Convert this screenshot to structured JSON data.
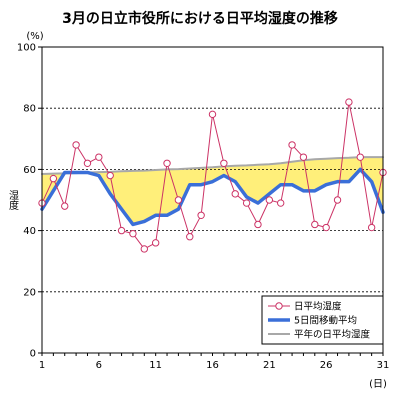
{
  "chart_data": {
    "type": "line",
    "title": "3月の日立市役所における日平均湿度の推移",
    "ylabel": "湿度",
    "y_unit": "(%)",
    "x_unit": "(日)",
    "xlim": [
      1,
      31
    ],
    "ylim": [
      0,
      100
    ],
    "x_ticks": [
      1,
      6,
      11,
      16,
      21,
      26,
      31
    ],
    "y_ticks": [
      0,
      20,
      40,
      60,
      80,
      100
    ],
    "grid": "horizontal dashed",
    "legend_position": "bottom-right",
    "x": [
      1,
      2,
      3,
      4,
      5,
      6,
      7,
      8,
      9,
      10,
      11,
      12,
      13,
      14,
      15,
      16,
      17,
      18,
      19,
      20,
      21,
      22,
      23,
      24,
      25,
      26,
      27,
      28,
      29,
      30,
      31
    ],
    "series": [
      {
        "name": "日平均湿度",
        "style": "line-with-circle-markers",
        "color": "#cc3366",
        "values": [
          49,
          57,
          48,
          68,
          62,
          64,
          58,
          40,
          39,
          34,
          36,
          62,
          50,
          38,
          45,
          78,
          62,
          52,
          49,
          42,
          50,
          49,
          68,
          64,
          42,
          41,
          50,
          82,
          64,
          41,
          59
        ]
      },
      {
        "name": "5日間移動平均",
        "style": "thick-line",
        "color": "#3a6fd8",
        "values": [
          47,
          53,
          59,
          59,
          59,
          58,
          52,
          47,
          42,
          43,
          45,
          45,
          47,
          55,
          55,
          56,
          58,
          56,
          51,
          49,
          52,
          55,
          55,
          53,
          53,
          55,
          56,
          56,
          60,
          56,
          46
        ]
      },
      {
        "name": "平年の日平均湿度",
        "style": "gray-line",
        "color": "#a8a8a8",
        "values": [
          58.5,
          58.6,
          58.7,
          58.8,
          59,
          59.1,
          59.2,
          59.4,
          59.5,
          59.6,
          59.8,
          60,
          60.1,
          60.3,
          60.5,
          60.7,
          61,
          61.2,
          61.3,
          61.5,
          61.7,
          62,
          62.5,
          63,
          63.3,
          63.5,
          63.7,
          63.8,
          64,
          64,
          64
        ]
      }
    ],
    "fill": {
      "between": [
        "5日間移動平均",
        "平年の日平均湿度"
      ],
      "color": "#ffef7a"
    }
  }
}
